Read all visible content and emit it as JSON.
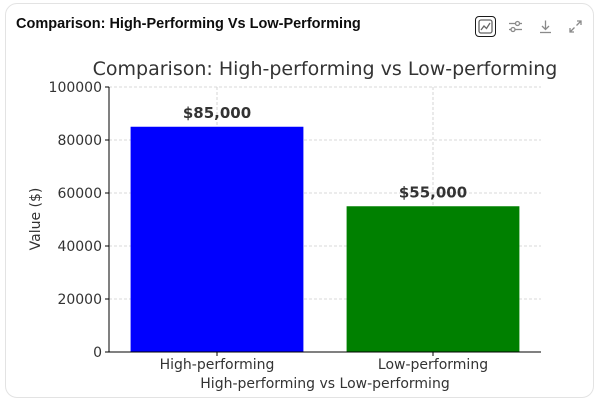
{
  "header": {
    "title": "Comparison: High-Performing Vs Low-Performing",
    "tools": [
      {
        "name": "chart-view-icon"
      },
      {
        "name": "settings-sliders-icon"
      },
      {
        "name": "download-icon"
      },
      {
        "name": "expand-icon"
      }
    ]
  },
  "colors": {
    "bar_high": "#0000ff",
    "bar_low": "#008000",
    "grid": "#cccccc",
    "axis": "#000000",
    "text": "#333333"
  },
  "chart_data": {
    "type": "bar",
    "title": "Comparison: High-performing vs Low-performing",
    "xlabel": "High-performing vs Low-performing",
    "ylabel": "Value ($)",
    "categories": [
      "High-performing",
      "Low-performing"
    ],
    "values": [
      85000,
      55000
    ],
    "data_labels": [
      "$85,000",
      "$55,000"
    ],
    "bar_colors": [
      "#0000ff",
      "#008000"
    ],
    "ylim": [
      0,
      100000
    ],
    "yticks": [
      0,
      20000,
      40000,
      60000,
      80000,
      100000
    ],
    "ytick_labels": [
      "0",
      "20000",
      "40000",
      "60000",
      "80000",
      "100000"
    ],
    "grid": true
  }
}
